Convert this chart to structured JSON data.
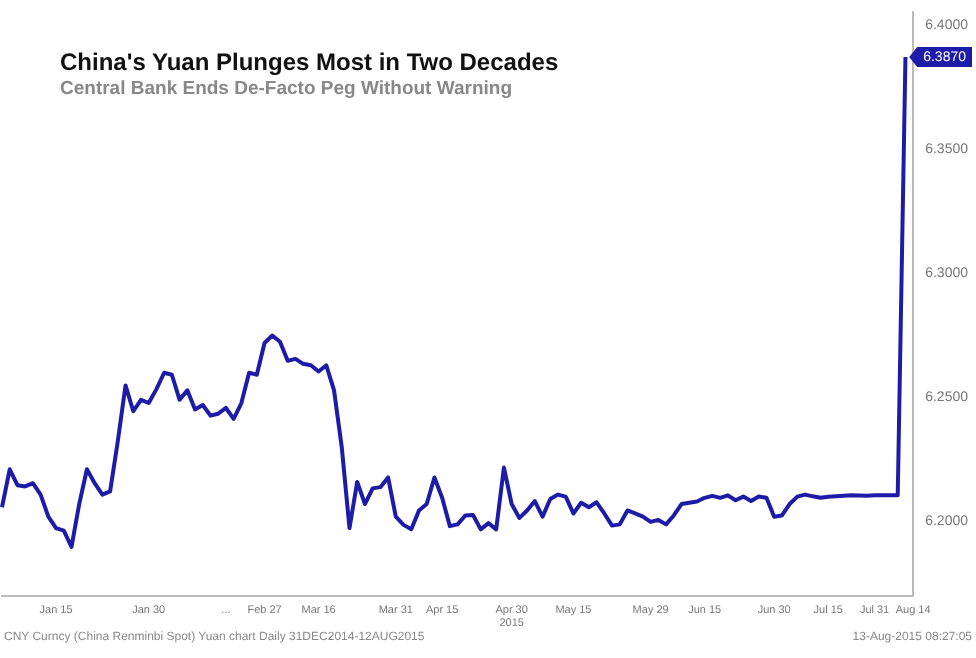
{
  "chart_data": {
    "type": "line",
    "title": "China's Yuan Plunges Most in Two Decades",
    "subtitle": "Central Bank Ends De-Facto Peg Without Warning",
    "categories": [
      null,
      null,
      null,
      null,
      null,
      null,
      null,
      "Jan 15",
      null,
      null,
      null,
      null,
      null,
      null,
      null,
      null,
      null,
      null,
      null,
      "Jan 30",
      null,
      null,
      null,
      null,
      null,
      null,
      null,
      null,
      null,
      "...",
      null,
      null,
      null,
      null,
      "Feb 27",
      null,
      null,
      null,
      null,
      null,
      null,
      "Mar 16",
      null,
      null,
      null,
      null,
      null,
      null,
      null,
      null,
      null,
      "Mar 31",
      null,
      null,
      null,
      null,
      null,
      "Apr 15",
      null,
      null,
      null,
      null,
      null,
      null,
      null,
      null,
      "Apr 30\n2015",
      null,
      null,
      null,
      null,
      null,
      null,
      null,
      "May 15",
      null,
      null,
      null,
      null,
      null,
      null,
      null,
      null,
      null,
      "May 29",
      null,
      null,
      null,
      null,
      null,
      null,
      "Jun 15",
      null,
      null,
      null,
      null,
      null,
      null,
      null,
      null,
      "Jun 30",
      null,
      null,
      null,
      null,
      null,
      null,
      "Jul 15",
      null,
      null,
      null,
      null,
      null,
      "Jul 31",
      null,
      null,
      null,
      null,
      "Aug 14"
    ],
    "series": [
      {
        "color": "#1c1ca8",
        "values": [
          6.2056,
          6.2209,
          6.2145,
          6.214,
          6.2153,
          6.2107,
          6.2018,
          6.1972,
          6.1962,
          6.1896,
          6.2069,
          6.2209,
          6.2153,
          6.2107,
          6.212,
          6.2323,
          6.2547,
          6.2443,
          6.2489,
          6.2476,
          6.2532,
          6.2598,
          6.259,
          6.2489,
          6.2527,
          6.245,
          6.2468,
          6.2425,
          6.2433,
          6.2456,
          6.2412,
          6.2476,
          6.2598,
          6.259,
          6.2718,
          6.2748,
          6.2723,
          6.2646,
          6.2654,
          6.2634,
          6.2628,
          6.2603,
          6.2628,
          6.2527,
          6.2298,
          6.1972,
          6.2158,
          6.2069,
          6.2132,
          6.2137,
          6.2176,
          6.2018,
          6.1985,
          6.1967,
          6.2043,
          6.2069,
          6.2176,
          6.2094,
          6.198,
          6.1987,
          6.2023,
          6.2025,
          6.1967,
          6.1992,
          6.1967,
          6.2216,
          6.2069,
          6.2013,
          6.2043,
          6.2081,
          6.2018,
          6.2089,
          6.2107,
          6.2099,
          6.2031,
          6.2074,
          6.2056,
          6.2076,
          6.2031,
          6.1982,
          6.1987,
          6.2043,
          6.2031,
          6.2018,
          6.1997,
          6.2005,
          6.1987,
          6.2023,
          6.2069,
          6.2074,
          6.2079,
          6.2094,
          6.2102,
          6.2094,
          6.2104,
          6.2084,
          6.2099,
          6.2081,
          6.2099,
          6.2094,
          6.2018,
          6.2023,
          6.2069,
          6.2099,
          6.2107,
          6.21,
          6.2094,
          6.2098,
          6.21,
          6.2102,
          6.2104,
          6.2103,
          6.2102,
          6.2104,
          6.2104,
          6.2104,
          6.2104,
          6.387,
          null
        ],
        "value_labels": [
          null,
          null,
          null,
          null,
          null,
          null,
          null,
          null,
          null,
          null,
          null,
          null,
          null,
          null,
          null,
          null,
          null,
          null,
          null,
          null,
          null,
          null,
          null,
          null,
          null,
          null,
          null,
          null,
          null,
          null,
          null,
          null,
          null,
          null,
          null,
          null,
          null,
          null,
          null,
          null,
          null,
          null,
          null,
          null,
          null,
          null,
          null,
          null,
          null,
          null,
          null,
          null,
          null,
          null,
          null,
          null,
          null,
          null,
          null,
          null,
          null,
          null,
          null,
          null,
          null,
          null,
          null,
          null,
          null,
          null,
          null,
          null,
          null,
          null,
          null,
          null,
          null,
          null,
          null,
          null,
          null,
          null,
          null,
          null,
          null,
          null,
          null,
          null,
          null,
          null,
          null,
          null,
          null,
          null,
          null,
          null,
          null,
          null,
          null,
          null,
          null,
          null,
          null,
          null,
          null,
          null,
          null,
          null,
          null,
          null,
          null,
          null,
          null,
          null,
          null,
          null,
          null,
          "6.3870",
          null
        ]
      }
    ],
    "ylim": [
      6.17,
      6.405
    ],
    "yticks": [
      {
        "value": 6.2,
        "label": "6.2000"
      },
      {
        "value": 6.25,
        "label": "6.2500"
      },
      {
        "value": 6.3,
        "label": "6.3000"
      },
      {
        "value": 6.35,
        "label": "6.3500"
      },
      {
        "value": 6.4,
        "label": "6.4000"
      }
    ],
    "grid": false,
    "marker": "none",
    "annotations": [
      "CNY Curncy (China Renminbi Spot) Yuan chart  Daily 31DEC2014-12AUG2015",
      "13-Aug-2015 08:27:05"
    ]
  }
}
